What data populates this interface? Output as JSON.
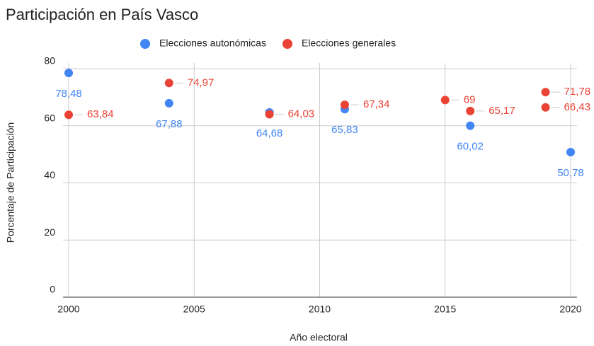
{
  "chart_data": {
    "type": "scatter",
    "title": "Participación en País Vasco",
    "x_label": "Año electoral",
    "y_label": "Porcentaje de Participación",
    "xlim": [
      2000,
      2020
    ],
    "xticks": [
      2000,
      2005,
      2010,
      2015,
      2020
    ],
    "ylim": [
      0,
      80
    ],
    "yticks": [
      0,
      20,
      40,
      60,
      80
    ],
    "grid": true,
    "legend": "top",
    "series": [
      {
        "name": "Elecciones autonómicas",
        "color": "#4285f4",
        "x": [
          2000,
          2004,
          2008,
          2011,
          2016,
          2020
        ],
        "values": [
          78.48,
          67.88,
          64.68,
          65.83,
          60.02,
          50.78
        ],
        "value_labels": [
          "78,48",
          "67,88",
          "64,68",
          "65,83",
          "60,02",
          "50,78"
        ]
      },
      {
        "name": "Elecciones generales",
        "color": "#ea4335",
        "x": [
          2000,
          2004,
          2008,
          2011,
          2015,
          2016,
          2019,
          2019
        ],
        "values": [
          63.84,
          74.97,
          64.03,
          67.34,
          69,
          65.17,
          71.78,
          66.43
        ],
        "value_labels": [
          "63,84",
          "74,97",
          "64,03",
          "67,34",
          "69",
          "65,17",
          "71,78",
          "66,43"
        ]
      }
    ]
  }
}
